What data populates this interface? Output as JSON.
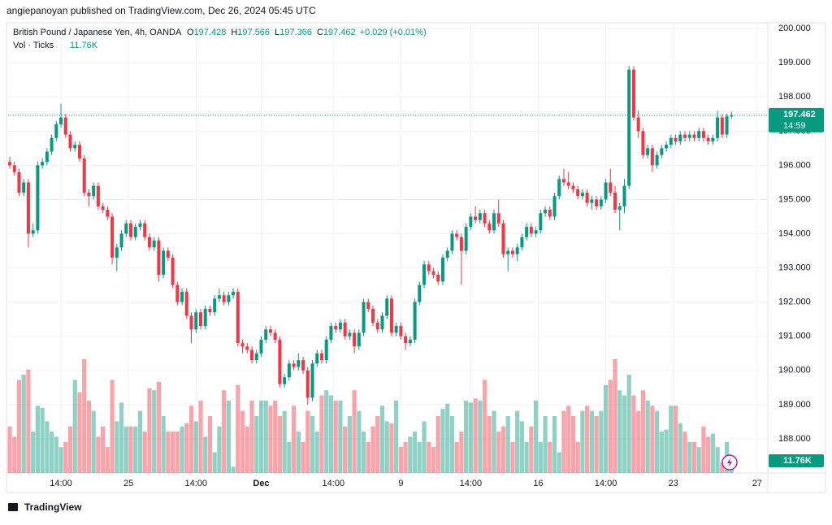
{
  "published": "angiepanoyan published on TradingView.com, Dec 26, 2024 05:45 UTC",
  "brand": "TradingView",
  "chart_data": {
    "type": "candlestick",
    "title": "British Pound / Japanese Yen, 4h, OANDA",
    "ohlc_letters": [
      "O",
      "H",
      "L",
      "C"
    ],
    "change": "+0.029 (+0.01%)",
    "countdown": "14:59",
    "up_color": "#089981",
    "down_color": "#f23645",
    "grid": true,
    "ylim": [
      187.0,
      200.17
    ],
    "yticks": [
      {
        "value": 188,
        "label": "188.000"
      },
      {
        "value": 189,
        "label": "189.000"
      },
      {
        "value": 190,
        "label": "190.000"
      },
      {
        "value": 191,
        "label": "191.000"
      },
      {
        "value": 192,
        "label": "192.000"
      },
      {
        "value": 193,
        "label": "193.000"
      },
      {
        "value": 194,
        "label": "194.000"
      },
      {
        "value": 195,
        "label": "195.000"
      },
      {
        "value": 196,
        "label": "196.000"
      },
      {
        "value": 197,
        "label": "197.000"
      },
      {
        "value": 198,
        "label": "198.000"
      },
      {
        "value": 199,
        "label": "199.000"
      },
      {
        "value": 200,
        "label": "200.000"
      }
    ],
    "xlim": [
      -0.35,
      162.8
    ],
    "xticks": [
      {
        "value": 11,
        "label": "14:00"
      },
      {
        "value": 25.5,
        "label": "25"
      },
      {
        "value": 40,
        "label": "14:00"
      },
      {
        "value": 54,
        "label": "Dec"
      },
      {
        "value": 69.5,
        "label": "14:00"
      },
      {
        "value": 84,
        "label": "9"
      },
      {
        "value": 99,
        "label": "14:00"
      },
      {
        "value": 113.5,
        "label": "16"
      },
      {
        "value": 128,
        "label": "14:00"
      },
      {
        "value": 142.5,
        "label": "23"
      },
      {
        "value": 160.5,
        "label": "27"
      }
    ],
    "candles": [
      [
        196.1,
        196.25,
        195.9,
        196.0
      ],
      [
        196.0,
        196.1,
        195.7,
        195.8
      ],
      [
        195.8,
        195.9,
        195.1,
        195.2
      ],
      [
        195.2,
        195.6,
        195.1,
        195.5
      ],
      [
        195.5,
        195.6,
        193.6,
        194.0
      ],
      [
        194.0,
        194.3,
        193.9,
        194.1
      ],
      [
        194.1,
        196.1,
        194.0,
        196.0
      ],
      [
        196.0,
        196.2,
        195.9,
        196.1
      ],
      [
        196.1,
        196.5,
        196.0,
        196.4
      ],
      [
        196.4,
        196.9,
        196.3,
        196.8
      ],
      [
        196.8,
        197.3,
        196.7,
        197.2
      ],
      [
        197.2,
        197.8,
        197.1,
        197.4
      ],
      [
        197.4,
        197.5,
        196.8,
        196.9
      ],
      [
        196.9,
        197.0,
        196.4,
        196.5
      ],
      [
        196.5,
        196.7,
        196.4,
        196.6
      ],
      [
        196.6,
        196.7,
        196.1,
        196.2
      ],
      [
        196.2,
        196.3,
        195.1,
        195.2
      ],
      [
        195.2,
        195.3,
        194.8,
        195.1
      ],
      [
        195.1,
        195.5,
        195.0,
        195.4
      ],
      [
        195.4,
        195.5,
        194.7,
        194.8
      ],
      [
        194.8,
        194.9,
        194.6,
        194.7
      ],
      [
        194.7,
        194.8,
        194.4,
        194.5
      ],
      [
        194.5,
        194.6,
        193.1,
        193.3
      ],
      [
        193.3,
        193.7,
        192.9,
        193.6
      ],
      [
        193.6,
        194.1,
        193.5,
        194.0
      ],
      [
        194.0,
        194.4,
        193.9,
        194.3
      ],
      [
        194.3,
        194.4,
        193.8,
        193.9
      ],
      [
        193.9,
        194.3,
        193.8,
        194.2
      ],
      [
        194.2,
        194.4,
        194.1,
        194.3
      ],
      [
        194.3,
        194.4,
        193.8,
        193.9
      ],
      [
        193.9,
        194.0,
        193.5,
        193.6
      ],
      [
        193.6,
        193.9,
        193.5,
        193.8
      ],
      [
        193.8,
        193.9,
        192.6,
        192.8
      ],
      [
        192.8,
        193.6,
        192.7,
        193.5
      ],
      [
        193.5,
        193.6,
        193.2,
        193.3
      ],
      [
        193.3,
        193.4,
        192.4,
        192.5
      ],
      [
        192.5,
        192.6,
        191.9,
        192.0
      ],
      [
        192.0,
        192.4,
        191.9,
        192.3
      ],
      [
        192.3,
        192.4,
        191.5,
        191.6
      ],
      [
        191.6,
        191.7,
        190.8,
        191.2
      ],
      [
        191.2,
        191.8,
        191.1,
        191.7
      ],
      [
        191.7,
        191.8,
        191.2,
        191.3
      ],
      [
        191.3,
        191.9,
        191.2,
        191.8
      ],
      [
        191.8,
        191.9,
        191.6,
        191.7
      ],
      [
        191.7,
        192.2,
        191.6,
        192.1
      ],
      [
        192.1,
        192.4,
        192.0,
        192.2
      ],
      [
        192.2,
        192.3,
        191.9,
        192.0
      ],
      [
        192.0,
        192.3,
        191.9,
        192.2
      ],
      [
        192.2,
        192.4,
        192.1,
        192.3
      ],
      [
        192.3,
        192.4,
        190.7,
        190.8
      ],
      [
        190.8,
        190.9,
        190.5,
        190.7
      ],
      [
        190.7,
        190.8,
        190.5,
        190.6
      ],
      [
        190.6,
        190.7,
        190.2,
        190.3
      ],
      [
        190.3,
        190.6,
        190.2,
        190.5
      ],
      [
        190.5,
        191.0,
        190.4,
        190.9
      ],
      [
        190.9,
        191.3,
        190.8,
        191.2
      ],
      [
        191.2,
        191.3,
        191.0,
        191.1
      ],
      [
        191.1,
        191.2,
        190.8,
        190.9
      ],
      [
        190.9,
        191.0,
        189.5,
        189.6
      ],
      [
        189.6,
        189.9,
        189.5,
        189.8
      ],
      [
        189.8,
        190.3,
        189.7,
        190.2
      ],
      [
        190.2,
        190.3,
        190.0,
        190.1
      ],
      [
        190.1,
        190.5,
        190.0,
        190.3
      ],
      [
        190.3,
        190.4,
        189.9,
        190.0
      ],
      [
        190.0,
        190.1,
        189.0,
        189.2
      ],
      [
        189.2,
        190.3,
        189.1,
        190.2
      ],
      [
        190.2,
        190.6,
        190.1,
        190.5
      ],
      [
        190.5,
        190.6,
        190.2,
        190.3
      ],
      [
        190.3,
        191.0,
        190.2,
        190.9
      ],
      [
        190.9,
        191.4,
        190.8,
        191.3
      ],
      [
        191.3,
        191.4,
        191.1,
        191.2
      ],
      [
        191.2,
        191.5,
        191.1,
        191.4
      ],
      [
        191.4,
        191.5,
        190.9,
        191.0
      ],
      [
        191.0,
        191.2,
        190.9,
        191.1
      ],
      [
        191.1,
        191.2,
        190.5,
        190.7
      ],
      [
        190.7,
        191.2,
        190.6,
        191.1
      ],
      [
        191.1,
        192.1,
        191.0,
        192.0
      ],
      [
        192.0,
        192.1,
        191.7,
        191.8
      ],
      [
        191.8,
        191.9,
        191.3,
        191.4
      ],
      [
        191.4,
        191.5,
        191.1,
        191.2
      ],
      [
        191.2,
        191.7,
        191.1,
        191.6
      ],
      [
        191.6,
        192.2,
        191.5,
        192.1
      ],
      [
        192.1,
        192.2,
        191.0,
        191.1
      ],
      [
        191.1,
        191.4,
        191.0,
        191.3
      ],
      [
        191.3,
        191.4,
        190.9,
        191.0
      ],
      [
        191.0,
        191.1,
        190.6,
        190.8
      ],
      [
        190.8,
        191.0,
        190.7,
        190.9
      ],
      [
        190.9,
        192.1,
        190.8,
        192.0
      ],
      [
        192.0,
        192.6,
        191.9,
        192.5
      ],
      [
        192.5,
        193.2,
        192.4,
        193.1
      ],
      [
        193.1,
        193.2,
        192.8,
        192.9
      ],
      [
        192.9,
        193.0,
        192.7,
        192.8
      ],
      [
        192.8,
        192.9,
        192.5,
        192.6
      ],
      [
        192.6,
        193.4,
        192.5,
        193.3
      ],
      [
        193.3,
        193.6,
        193.2,
        193.5
      ],
      [
        193.5,
        194.1,
        193.4,
        194.0
      ],
      [
        194.0,
        194.1,
        193.8,
        193.9
      ],
      [
        193.9,
        194.0,
        192.5,
        193.5
      ],
      [
        193.5,
        194.3,
        193.4,
        194.2
      ],
      [
        194.2,
        194.6,
        194.1,
        194.5
      ],
      [
        194.5,
        194.8,
        194.3,
        194.4
      ],
      [
        194.4,
        194.7,
        194.3,
        194.6
      ],
      [
        194.6,
        194.7,
        194.2,
        194.3
      ],
      [
        194.3,
        194.4,
        194.0,
        194.1
      ],
      [
        194.1,
        194.7,
        194.0,
        194.6
      ],
      [
        194.6,
        195.0,
        194.2,
        194.3
      ],
      [
        194.3,
        194.4,
        193.3,
        193.4
      ],
      [
        193.4,
        193.6,
        192.9,
        193.5
      ],
      [
        193.5,
        193.6,
        193.3,
        193.4
      ],
      [
        193.4,
        193.7,
        193.2,
        193.6
      ],
      [
        193.6,
        194.0,
        193.5,
        193.9
      ],
      [
        193.9,
        194.3,
        193.8,
        194.2
      ],
      [
        194.2,
        194.3,
        193.9,
        194.0
      ],
      [
        194.0,
        194.2,
        193.9,
        194.1
      ],
      [
        194.1,
        194.7,
        194.0,
        194.6
      ],
      [
        194.6,
        194.8,
        194.5,
        194.7
      ],
      [
        194.7,
        194.8,
        194.4,
        194.5
      ],
      [
        194.5,
        195.2,
        194.4,
        195.1
      ],
      [
        195.1,
        195.7,
        195.0,
        195.6
      ],
      [
        195.6,
        195.9,
        195.4,
        195.5
      ],
      [
        195.5,
        195.8,
        195.3,
        195.4
      ],
      [
        195.4,
        195.5,
        195.2,
        195.3
      ],
      [
        195.3,
        195.4,
        195.0,
        195.1
      ],
      [
        195.1,
        195.3,
        195.0,
        195.2
      ],
      [
        195.2,
        195.3,
        194.8,
        194.9
      ],
      [
        194.9,
        195.1,
        194.7,
        195.0
      ],
      [
        195.0,
        195.1,
        194.7,
        194.8
      ],
      [
        194.8,
        195.1,
        194.7,
        195.0
      ],
      [
        195.0,
        195.6,
        194.9,
        195.5
      ],
      [
        195.5,
        195.9,
        195.1,
        195.2
      ],
      [
        195.2,
        195.4,
        194.6,
        194.7
      ],
      [
        194.7,
        194.9,
        194.1,
        194.8
      ],
      [
        194.8,
        195.6,
        194.6,
        195.4
      ],
      [
        195.4,
        198.9,
        195.3,
        198.8
      ],
      [
        198.8,
        198.9,
        197.3,
        197.4
      ],
      [
        197.4,
        197.6,
        196.8,
        197.0
      ],
      [
        197.0,
        197.1,
        196.2,
        196.3
      ],
      [
        196.3,
        196.6,
        196.2,
        196.5
      ],
      [
        196.5,
        196.6,
        195.8,
        196.0
      ],
      [
        196.0,
        196.4,
        195.9,
        196.3
      ],
      [
        196.3,
        196.6,
        196.2,
        196.5
      ],
      [
        196.5,
        196.7,
        196.4,
        196.6
      ],
      [
        196.6,
        196.9,
        196.5,
        196.8
      ],
      [
        196.8,
        196.9,
        196.6,
        196.7
      ],
      [
        196.7,
        197.0,
        196.6,
        196.9
      ],
      [
        196.9,
        197.0,
        196.7,
        196.8
      ],
      [
        196.8,
        197.0,
        196.7,
        196.9
      ],
      [
        196.9,
        197.0,
        196.7,
        196.8
      ],
      [
        196.8,
        197.1,
        196.7,
        197.0
      ],
      [
        197.0,
        197.1,
        196.7,
        196.8
      ],
      [
        196.8,
        196.9,
        196.6,
        196.7
      ],
      [
        196.7,
        196.9,
        196.6,
        196.8
      ],
      [
        196.8,
        197.6,
        196.7,
        197.4
      ],
      [
        197.4,
        197.5,
        196.8,
        196.9
      ],
      [
        196.9,
        197.5,
        196.8,
        197.43
      ],
      [
        197.428,
        197.566,
        197.366,
        197.462
      ]
    ],
    "volume": {
      "name": "Vol · Ticks",
      "last_label": "11.76K",
      "values": [
        45,
        35,
        90,
        95,
        100,
        40,
        65,
        63,
        50,
        40,
        35,
        25,
        30,
        45,
        90,
        78,
        110,
        70,
        60,
        35,
        45,
        25,
        90,
        50,
        68,
        45,
        45,
        45,
        60,
        40,
        82,
        80,
        88,
        55,
        40,
        40,
        40,
        45,
        48,
        65,
        50,
        70,
        35,
        55,
        20,
        45,
        80,
        70,
        6,
        85,
        60,
        45,
        70,
        55,
        70,
        70,
        65,
        70,
        55,
        60,
        30,
        65,
        40,
        30,
        60,
        55,
        40,
        75,
        80,
        75,
        70,
        70,
        45,
        55,
        80,
        60,
        40,
        30,
        45,
        55,
        65,
        50,
        48,
        70,
        25,
        30,
        35,
        40,
        30,
        50,
        30,
        25,
        55,
        62,
        67,
        55,
        30,
        40,
        70,
        68,
        72,
        70,
        90,
        55,
        60,
        40,
        45,
        55,
        30,
        60,
        50,
        30,
        45,
        70,
        30,
        55,
        30,
        55,
        20,
        60,
        65,
        55,
        30,
        60,
        65,
        60,
        55,
        60,
        85,
        90,
        110,
        80,
        75,
        95,
        75,
        60,
        80,
        70,
        65,
        60,
        40,
        42,
        65,
        65,
        48,
        40,
        30,
        30,
        25,
        45,
        35,
        38,
        25,
        10,
        30,
        11.76
      ]
    }
  }
}
